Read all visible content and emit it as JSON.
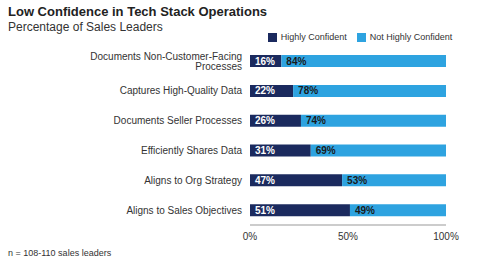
{
  "chart_data": {
    "type": "bar",
    "title": "Low Confidence in Tech Stack Operations",
    "subtitle": "Percentage of Sales Leaders",
    "annotations": [
      "n = 108-110 sales leaders"
    ],
    "orientation": "horizontal",
    "stacked": true,
    "data_labels": true,
    "grid": false,
    "legend": "top",
    "categories": [
      "Documents Non-Customer-Facing Processes",
      "Captures High-Quality Data",
      "Documents Seller Processes",
      "Efficiently Shares Data",
      "Aligns to Org Strategy",
      "Aligns to Sales Objectives"
    ],
    "series": [
      {
        "name": "Highly Confident",
        "color": "#1b2a5e",
        "values": [
          16,
          22,
          26,
          31,
          47,
          51
        ],
        "value_labels": [
          "16%",
          "22%",
          "26%",
          "31%",
          "47%",
          "51%"
        ]
      },
      {
        "name": "Not Highly Confident",
        "color": "#2ea3e0",
        "values": [
          84,
          78,
          74,
          69,
          53,
          49
        ],
        "value_labels": [
          "84%",
          "78%",
          "74%",
          "69%",
          "53%",
          "49%"
        ]
      }
    ],
    "xlim": [
      0,
      100
    ],
    "xticks": [
      {
        "value": 0,
        "label": "0%"
      },
      {
        "value": 50,
        "label": "50%"
      },
      {
        "value": 100,
        "label": "100%"
      }
    ]
  }
}
